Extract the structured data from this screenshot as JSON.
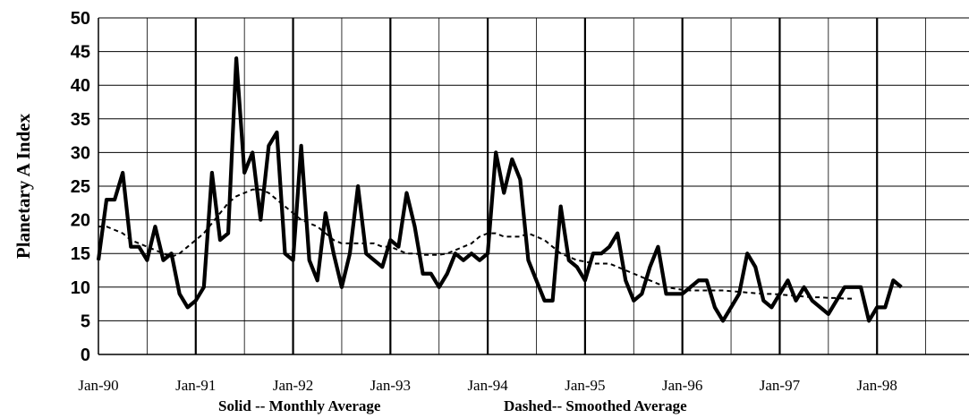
{
  "chart_data": {
    "type": "line",
    "ylabel": "Planetary A Index",
    "ylim": [
      0,
      50
    ],
    "yticks": [
      "0",
      "5",
      "10",
      "15",
      "20",
      "25",
      "30",
      "35",
      "40",
      "45",
      "50"
    ],
    "x_tick_labels": [
      "Jan-90",
      "Jan-91",
      "Jan-92",
      "Jan-93",
      "Jan-94",
      "Jan-95",
      "Jan-96",
      "Jan-97",
      "Jan-98"
    ],
    "x_start": "Jan-90",
    "xlim": [
      "Jan-90",
      "Jan-99"
    ],
    "grid": "minor-and-major-vertical, horizontal",
    "captions": [
      "Solid -- Monthly Average",
      "Dashed-- Smoothed Average"
    ],
    "series": [
      {
        "style": "solid",
        "color": "#000000",
        "values": [
          14,
          23,
          23,
          27,
          16,
          16,
          14,
          19,
          14,
          15,
          9,
          7,
          8,
          10,
          27,
          17,
          18,
          44,
          27,
          30,
          20,
          31,
          33,
          15,
          14,
          31,
          14,
          11,
          21,
          15,
          10,
          15,
          25,
          15,
          14,
          13,
          17,
          16,
          24,
          19,
          12,
          12,
          10,
          12,
          15,
          14,
          15,
          14,
          15,
          30,
          24,
          29,
          26,
          14,
          11,
          8,
          8,
          22,
          14,
          13,
          11,
          15,
          15,
          16,
          18,
          11,
          8,
          9,
          13,
          16,
          9,
          9,
          9,
          10,
          11,
          11,
          7,
          5,
          7,
          9,
          15,
          13,
          8,
          7,
          9,
          11,
          8,
          10,
          8,
          7,
          6,
          8,
          10,
          10,
          10,
          5,
          7,
          7,
          11,
          10
        ]
      },
      {
        "style": "dashed",
        "color": "#000000",
        "values": [
          19,
          19,
          18.5,
          18,
          17,
          16.5,
          16,
          15.5,
          15,
          14.5,
          15,
          16,
          17,
          18,
          19.5,
          21,
          22.5,
          23.5,
          24,
          24.5,
          24.5,
          24,
          23,
          22,
          21,
          20,
          19.5,
          19,
          18,
          17,
          16.5,
          16.5,
          16.5,
          16.5,
          16.5,
          16,
          16,
          15.5,
          15,
          15,
          14.8,
          14.8,
          14.8,
          15,
          15.5,
          16,
          16.5,
          17.5,
          18,
          18,
          17.5,
          17.5,
          17.5,
          18,
          17.5,
          17,
          16,
          15,
          14.5,
          14,
          13.8,
          13.5,
          13.5,
          13.5,
          13,
          12.5,
          12,
          11.5,
          11,
          10.5,
          10,
          9.8,
          9.6,
          9.5,
          9.5,
          9.5,
          9.5,
          9.5,
          9.4,
          9.3,
          9.2,
          9.1,
          9,
          9,
          8.9,
          8.8,
          8.7,
          8.6,
          8.5,
          8.5,
          8.4,
          8.4,
          8.3,
          8.3
        ]
      }
    ]
  }
}
